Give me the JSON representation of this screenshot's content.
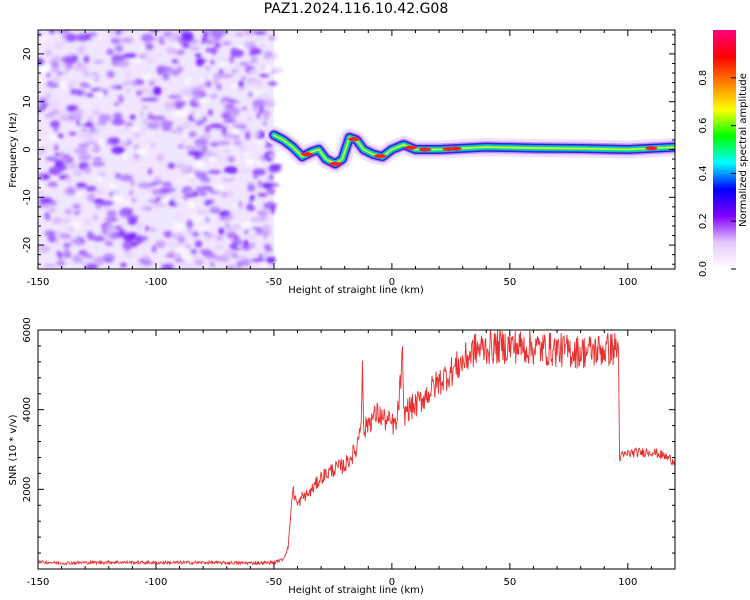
{
  "title": "PAZ1.2024.116.10.42.G08",
  "chart_data": [
    {
      "type": "heatmap",
      "xlabel": "Height of straight line (km)",
      "ylabel": "Frequency (Hz)",
      "xlim": [
        -150,
        120
      ],
      "ylim": [
        -25,
        25
      ],
      "xticks": [
        -150,
        -100,
        -50,
        0,
        50,
        100
      ],
      "yticks": [
        -20,
        -10,
        0,
        10,
        20
      ],
      "colorbar": {
        "label": "Normalized spectral amplitude",
        "range": [
          0,
          1
        ],
        "ticks": [
          "0.0",
          "0.2",
          "0.4",
          "0.6",
          "0.8"
        ],
        "colors": [
          "#ffffff",
          "#e6c8ff",
          "#8000ff",
          "#0000ff",
          "#00ffff",
          "#00ff00",
          "#ffff00",
          "#ff8000",
          "#ff0000",
          "#ff0080"
        ]
      },
      "noise_region_x": [
        -150,
        -50
      ],
      "ridge": [
        {
          "x": -50,
          "y": 3
        },
        {
          "x": -46,
          "y": 2
        },
        {
          "x": -42,
          "y": 0.5
        },
        {
          "x": -38,
          "y": -1.5
        },
        {
          "x": -34,
          "y": -0.5
        },
        {
          "x": -31,
          "y": 0
        },
        {
          "x": -28,
          "y": -2
        },
        {
          "x": -24,
          "y": -3
        },
        {
          "x": -21,
          "y": -2
        },
        {
          "x": -18,
          "y": 2.5
        },
        {
          "x": -15,
          "y": 2
        },
        {
          "x": -12,
          "y": 0
        },
        {
          "x": -8,
          "y": -1
        },
        {
          "x": -4,
          "y": -1.5
        },
        {
          "x": 0,
          "y": 0
        },
        {
          "x": 5,
          "y": 1
        },
        {
          "x": 10,
          "y": 0
        },
        {
          "x": 20,
          "y": 0
        },
        {
          "x": 40,
          "y": 0.5
        },
        {
          "x": 60,
          "y": 0.3
        },
        {
          "x": 80,
          "y": 0.2
        },
        {
          "x": 100,
          "y": 0
        },
        {
          "x": 120,
          "y": 0.5
        }
      ]
    },
    {
      "type": "line",
      "xlabel": "Height of straight line (km)",
      "ylabel": "SNR (10 * v/v)",
      "xlim": [
        -150,
        120
      ],
      "ylim": [
        0,
        6000
      ],
      "xticks": [
        -150,
        -100,
        -50,
        0,
        50,
        100
      ],
      "yticks": [
        2000,
        4000,
        6000
      ],
      "color": "#e83030",
      "series": [
        {
          "x": [
            -150,
            -140,
            -120,
            -100,
            -80,
            -60,
            -50,
            -46,
            -44,
            -43,
            -42,
            -40,
            -38,
            -35,
            -30,
            -25,
            -20,
            -15,
            -13,
            -12.5,
            -12,
            -10,
            -6,
            -2,
            2,
            4.5,
            5,
            6,
            10,
            15,
            20,
            25,
            30,
            35,
            40,
            50,
            60,
            70,
            80,
            90,
            96,
            96.5,
            100,
            110,
            115,
            120
          ],
          "y": [
            180,
            150,
            170,
            160,
            160,
            150,
            160,
            250,
            550,
            1300,
            2000,
            1600,
            1800,
            1900,
            2300,
            2500,
            2600,
            3000,
            3800,
            5450,
            3400,
            3700,
            3900,
            3700,
            3600,
            5250,
            3800,
            4000,
            4100,
            4400,
            4700,
            4950,
            5200,
            5500,
            5550,
            5600,
            5550,
            5500,
            5450,
            5500,
            5550,
            2800,
            2900,
            2950,
            2850,
            2700
          ]
        }
      ]
    }
  ]
}
